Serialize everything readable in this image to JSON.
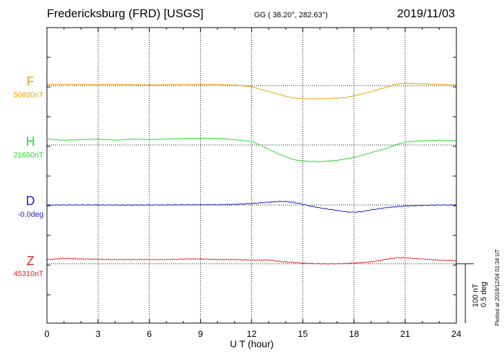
{
  "header": {
    "station": "Fredericksburg (FRD)  [USGS]",
    "coords": "GG ( 38.20°, 282.63°)",
    "date": "2019/11/03"
  },
  "footer": {
    "x_label": "U T (hour)",
    "scale_primary": "100 nT",
    "scale_secondary": "0.5 deg",
    "plotted": "Plotted at 2019/12/04 01:34 UT"
  },
  "chart_data": {
    "type": "line",
    "x_ticks": [
      0,
      3,
      6,
      9,
      12,
      15,
      18,
      21,
      24
    ],
    "xlim": [
      0,
      24
    ],
    "grid": true,
    "scale_bar": "100 nT / 0.5 deg",
    "series": [
      {
        "name": "F",
        "baseline_label": "50820nT",
        "unit": "nT",
        "color": "#f0a000",
        "points": [
          [
            0,
            50822
          ],
          [
            2,
            50822
          ],
          [
            4,
            50822
          ],
          [
            6,
            50821
          ],
          [
            8,
            50822
          ],
          [
            10,
            50822
          ],
          [
            11,
            50821
          ],
          [
            12,
            50818
          ],
          [
            12.5,
            50814
          ],
          [
            13,
            50810
          ],
          [
            13.5,
            50806
          ],
          [
            14,
            50802
          ],
          [
            14.5,
            50799
          ],
          [
            15,
            50798
          ],
          [
            16,
            50798
          ],
          [
            17,
            50799
          ],
          [
            17.5,
            50800
          ],
          [
            18,
            50803
          ],
          [
            18.5,
            50806
          ],
          [
            19,
            50810
          ],
          [
            19.5,
            50814
          ],
          [
            20,
            50818
          ],
          [
            20.5,
            50823
          ],
          [
            21,
            50824
          ],
          [
            22,
            50823
          ],
          [
            23,
            50822
          ],
          [
            24,
            50821
          ]
        ]
      },
      {
        "name": "H",
        "baseline_label": "21650nT",
        "unit": "nT",
        "color": "#22dd22",
        "points": [
          [
            0,
            21660
          ],
          [
            1,
            21658
          ],
          [
            2,
            21659
          ],
          [
            3,
            21660
          ],
          [
            4,
            21658
          ],
          [
            5,
            21660
          ],
          [
            6,
            21659
          ],
          [
            7,
            21660
          ],
          [
            8,
            21661
          ],
          [
            9,
            21661
          ],
          [
            10,
            21661
          ],
          [
            11,
            21659
          ],
          [
            12,
            21656
          ],
          [
            12.5,
            21650
          ],
          [
            13,
            21643
          ],
          [
            13.5,
            21636
          ],
          [
            14,
            21630
          ],
          [
            14.5,
            21625
          ],
          [
            15,
            21623
          ],
          [
            16,
            21622
          ],
          [
            17,
            21624
          ],
          [
            18,
            21629
          ],
          [
            19,
            21637
          ],
          [
            20,
            21645
          ],
          [
            20.5,
            21651
          ],
          [
            21,
            21655
          ],
          [
            22,
            21657
          ],
          [
            23,
            21658
          ],
          [
            24,
            21657
          ]
        ]
      },
      {
        "name": "D",
        "baseline_label": "-0.0deg",
        "unit": "deg",
        "color": "#1a1acc",
        "points": [
          [
            0,
            0.0
          ],
          [
            2,
            0.001
          ],
          [
            4,
            0.0
          ],
          [
            6,
            0.0
          ],
          [
            8,
            0.002
          ],
          [
            10,
            0.003
          ],
          [
            11,
            0.006
          ],
          [
            12,
            0.013
          ],
          [
            13,
            0.024
          ],
          [
            13.5,
            0.03
          ],
          [
            14,
            0.03
          ],
          [
            14.5,
            0.022
          ],
          [
            15,
            0.006
          ],
          [
            15.5,
            -0.01
          ],
          [
            16,
            -0.024
          ],
          [
            17,
            -0.045
          ],
          [
            17.5,
            -0.056
          ],
          [
            18,
            -0.06
          ],
          [
            18.5,
            -0.055
          ],
          [
            19,
            -0.04
          ],
          [
            20,
            -0.02
          ],
          [
            21,
            -0.008
          ],
          [
            22,
            -0.003
          ],
          [
            23,
            0.0
          ],
          [
            24,
            0.001
          ]
        ]
      },
      {
        "name": "Z",
        "baseline_label": "45310nT",
        "unit": "nT",
        "color": "#e02020",
        "points": [
          [
            0,
            45317
          ],
          [
            1,
            45319
          ],
          [
            2,
            45318
          ],
          [
            4,
            45317
          ],
          [
            6,
            45317
          ],
          [
            7,
            45317
          ],
          [
            8,
            45318
          ],
          [
            9,
            45318
          ],
          [
            10,
            45317
          ],
          [
            11,
            45317
          ],
          [
            12,
            45316
          ],
          [
            13,
            45316
          ],
          [
            14,
            45313
          ],
          [
            15,
            45311
          ],
          [
            16,
            45310
          ],
          [
            17,
            45310
          ],
          [
            18,
            45311
          ],
          [
            19,
            45313
          ],
          [
            20,
            45318
          ],
          [
            20.5,
            45320
          ],
          [
            21,
            45320
          ],
          [
            22,
            45318
          ],
          [
            23,
            45316
          ],
          [
            24,
            45315
          ]
        ]
      }
    ]
  }
}
